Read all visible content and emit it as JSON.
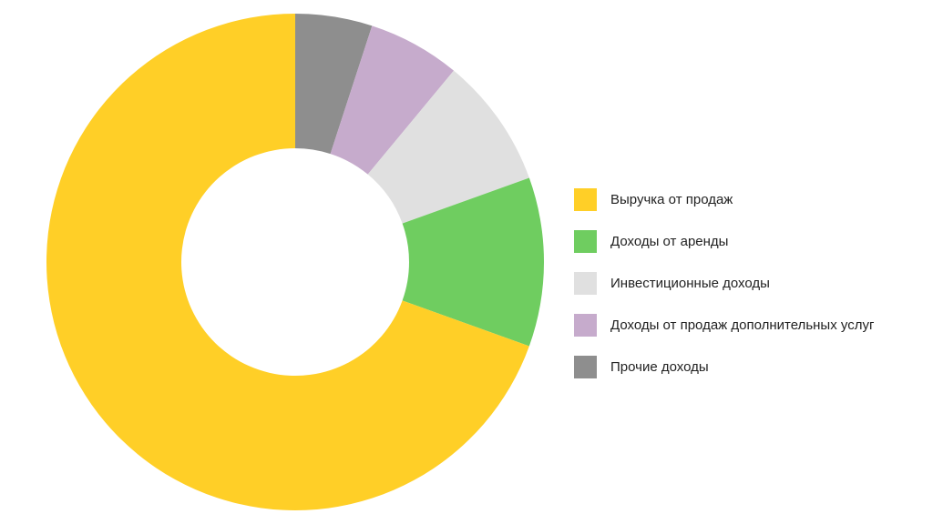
{
  "chart_data": {
    "type": "pie",
    "donut": true,
    "legend_position": "right",
    "series": [
      {
        "name": "Выручка от продаж",
        "value": 69.5,
        "color": "#FFCF27"
      },
      {
        "name": "Доходы от аренды",
        "value": 11.0,
        "color": "#6FCD60"
      },
      {
        "name": "Инвестиционные доходы",
        "value": 8.5,
        "color": "#E0E0E0"
      },
      {
        "name": "Доходы от продаж дополнительных услуг",
        "value": 6.0,
        "color": "#C6ABCC"
      },
      {
        "name": "Прочие доходы",
        "value": 5.0,
        "color": "#8E8E8E"
      }
    ]
  }
}
